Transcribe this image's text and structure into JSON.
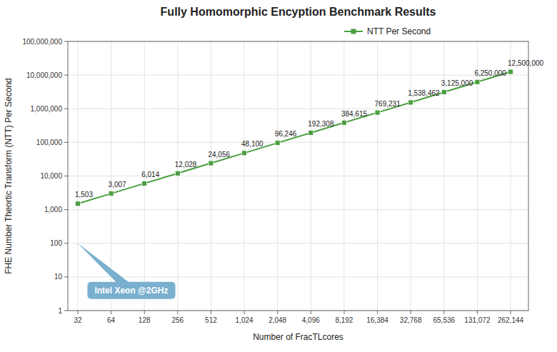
{
  "chart_data": {
    "type": "line",
    "title": "Fully Homomorphic Encyption Benchmark Results",
    "x_label": "Number of FracTLcores",
    "y_label": "FHE Number Theortic Transform (NTT) Per Second",
    "x": [
      32,
      64,
      128,
      256,
      512,
      1024,
      2048,
      4096,
      8192,
      16384,
      32768,
      65536,
      131072,
      262144
    ],
    "series": [
      {
        "name": "NTT Per Second",
        "color": "#4a9e3f",
        "marker": "square",
        "line_style": "solid",
        "values": [
          1503,
          3007,
          6014,
          12028,
          24056,
          48100,
          96246,
          192308,
          384615,
          769231,
          1538462,
          3125000,
          6250000,
          12500000
        ],
        "value_labels": [
          "1,503",
          "3,007",
          "6,014",
          "12,028",
          "24,056",
          "48,100",
          "96,246",
          "192,308",
          "384,615",
          "769,231",
          "1,538,462",
          "3,125,000",
          "6,250,000",
          "12,500,000"
        ]
      }
    ],
    "data_labels": true,
    "log": true,
    "grid": true,
    "legend": "top",
    "xlim": [
      26,
      380000
    ],
    "ylim": [
      1,
      100000000
    ],
    "xticks": [
      32,
      64,
      128,
      256,
      512,
      {
        "value": 1024,
        "label": "1,024"
      },
      {
        "value": 2048,
        "label": "2,048"
      },
      {
        "value": 4096,
        "label": "4,096"
      },
      {
        "value": 8192,
        "label": "8,192"
      },
      {
        "value": 16384,
        "label": "16,384"
      },
      {
        "value": 32768,
        "label": "32,768"
      },
      {
        "value": 65536,
        "label": "65,536"
      },
      {
        "value": 131072,
        "label": "131,072"
      },
      {
        "value": 262144,
        "label": "262,144"
      }
    ],
    "yticks": [
      1,
      10,
      100,
      {
        "value": 1000,
        "label": "1,000"
      },
      {
        "value": 10000,
        "label": "10,000"
      },
      {
        "value": 100000,
        "label": "100,000"
      },
      {
        "value": 1000000,
        "label": "1,000,000"
      },
      {
        "value": 10000000,
        "label": "10,000,000"
      },
      {
        "value": 100000000,
        "label": "100,000,000"
      }
    ],
    "annotations": [
      {
        "text": "Intel Xeon @2GHz",
        "x": 32,
        "y": 100,
        "color": "#7aafcf"
      }
    ]
  }
}
